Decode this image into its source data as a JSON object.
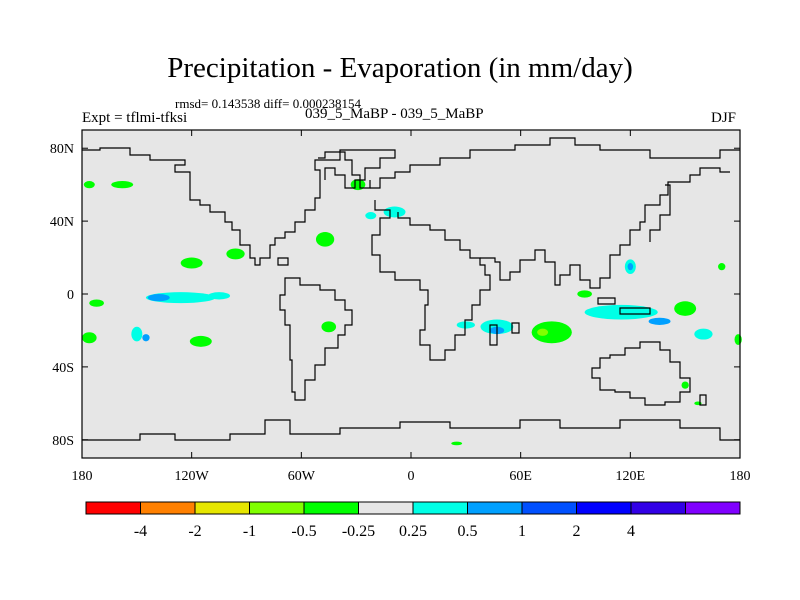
{
  "title": "Precipitation - Evaporation (in mm/day)",
  "stats": "rmsd= 0.143538  diff= 0.000238154",
  "experiment": "Expt = tflmi-tfksi",
  "subtitle": "039_5_MaBP - 039_5_MaBP",
  "season": "DJF",
  "map": {
    "background_color": "#e6e6e6",
    "coastline_color": "#000000",
    "lon_range": [
      -180,
      180
    ],
    "lat_range": [
      -90,
      90
    ],
    "lon_ticks": [
      {
        "value": -180,
        "label": "180"
      },
      {
        "value": -120,
        "label": "120W"
      },
      {
        "value": -60,
        "label": "60W"
      },
      {
        "value": 0,
        "label": "0"
      },
      {
        "value": 60,
        "label": "60E"
      },
      {
        "value": 120,
        "label": "120E"
      },
      {
        "value": 180,
        "label": "180"
      }
    ],
    "lat_ticks": [
      {
        "value": 80,
        "label": "80N"
      },
      {
        "value": 40,
        "label": "40N"
      },
      {
        "value": 0,
        "label": "0"
      },
      {
        "value": -40,
        "label": "40S"
      },
      {
        "value": -80,
        "label": "80S"
      }
    ]
  },
  "colorbar": {
    "colors": [
      "#ff0000",
      "#ff8000",
      "#e6e600",
      "#80ff00",
      "#00ff00",
      "#e6e6e6",
      "#00ffe6",
      "#00a0ff",
      "#0050ff",
      "#0000ff",
      "#3200e6",
      "#8000ff"
    ],
    "labels": [
      "-4",
      "-2",
      "-1",
      "-0.5",
      "-0.25",
      "0.25",
      "0.5",
      "1",
      "2",
      "4"
    ]
  },
  "contours": [
    {
      "lon": -126,
      "lat": -2,
      "rx": 19,
      "ry": 3,
      "level": "0.5"
    },
    {
      "lon": -138,
      "lat": -2,
      "rx": 6,
      "ry": 2,
      "level": "1"
    },
    {
      "lon": -105,
      "lat": -1,
      "rx": 6,
      "ry": 2,
      "level": "0.5"
    },
    {
      "lon": -172,
      "lat": -5,
      "rx": 4,
      "ry": 2,
      "level": "-0.25"
    },
    {
      "lon": -120,
      "lat": 17,
      "rx": 6,
      "ry": 3,
      "level": "-0.25"
    },
    {
      "lon": -96,
      "lat": 22,
      "rx": 5,
      "ry": 3,
      "level": "-0.25"
    },
    {
      "lon": -153,
      "lat": 43,
      "rx": 4,
      "ry": 2,
      "level": "0.25"
    },
    {
      "lon": -176,
      "lat": 60,
      "rx": 3,
      "ry": 2,
      "level": "-0.25"
    },
    {
      "lon": -158,
      "lat": 60,
      "rx": 6,
      "ry": 2,
      "level": "-0.25"
    },
    {
      "lon": -126,
      "lat": 58,
      "rx": 4,
      "ry": 3,
      "level": "0.25"
    },
    {
      "lon": -47,
      "lat": 30,
      "rx": 5,
      "ry": 4,
      "level": "-0.25"
    },
    {
      "lon": -29,
      "lat": 60,
      "rx": 4,
      "ry": 3,
      "level": "-0.25"
    },
    {
      "lon": -9,
      "lat": 45,
      "rx": 6,
      "ry": 3,
      "level": "0.5"
    },
    {
      "lon": -22,
      "lat": 43,
      "rx": 3,
      "ry": 2,
      "level": "0.5"
    },
    {
      "lon": -150,
      "lat": -22,
      "rx": 3,
      "ry": 4,
      "level": "0.5"
    },
    {
      "lon": -145,
      "lat": -24,
      "rx": 2,
      "ry": 2,
      "level": "1"
    },
    {
      "lon": -115,
      "lat": -26,
      "rx": 6,
      "ry": 3,
      "level": "-0.25"
    },
    {
      "lon": -176,
      "lat": -24,
      "rx": 4,
      "ry": 3,
      "level": "-0.25"
    },
    {
      "lon": -45,
      "lat": -18,
      "rx": 4,
      "ry": 3,
      "level": "-0.25"
    },
    {
      "lon": -25,
      "lat": -18,
      "rx": 3,
      "ry": 2,
      "level": "0.25"
    },
    {
      "lon": 47,
      "lat": -18,
      "rx": 9,
      "ry": 4,
      "level": "0.5"
    },
    {
      "lon": 47,
      "lat": -20,
      "rx": 4,
      "ry": 2,
      "level": "1"
    },
    {
      "lon": 30,
      "lat": -17,
      "rx": 5,
      "ry": 2,
      "level": "0.5"
    },
    {
      "lon": 77,
      "lat": -21,
      "rx": 11,
      "ry": 6,
      "level": "-0.25"
    },
    {
      "lon": 72,
      "lat": -21,
      "rx": 3,
      "ry": 2,
      "level": "-0.5"
    },
    {
      "lon": 115,
      "lat": -10,
      "rx": 20,
      "ry": 4,
      "level": "0.5"
    },
    {
      "lon": 136,
      "lat": -15,
      "rx": 6,
      "ry": 2,
      "level": "1"
    },
    {
      "lon": 150,
      "lat": -8,
      "rx": 6,
      "ry": 4,
      "level": "-0.25"
    },
    {
      "lon": 160,
      "lat": -22,
      "rx": 5,
      "ry": 3,
      "level": "0.5"
    },
    {
      "lon": 179,
      "lat": -25,
      "rx": 2,
      "ry": 3,
      "level": "-0.25"
    },
    {
      "lon": 120,
      "lat": 15,
      "rx": 3,
      "ry": 4,
      "level": "0.5"
    },
    {
      "lon": 120,
      "lat": 15,
      "rx": 1.5,
      "ry": 2,
      "level": "1"
    },
    {
      "lon": 170,
      "lat": 15,
      "rx": 2,
      "ry": 2,
      "level": "-0.25"
    },
    {
      "lon": 95,
      "lat": 0,
      "rx": 4,
      "ry": 2,
      "level": "-0.25"
    },
    {
      "lon": 25,
      "lat": -82,
      "rx": 3,
      "ry": 1,
      "level": "-0.25"
    },
    {
      "lon": 150,
      "lat": -50,
      "rx": 2,
      "ry": 2,
      "level": "-0.25"
    },
    {
      "lon": 70,
      "lat": -60,
      "rx": 2,
      "ry": 1,
      "level": "0.25"
    },
    {
      "lon": 157,
      "lat": -60,
      "rx": 2,
      "ry": 1,
      "level": "-0.25"
    }
  ]
}
